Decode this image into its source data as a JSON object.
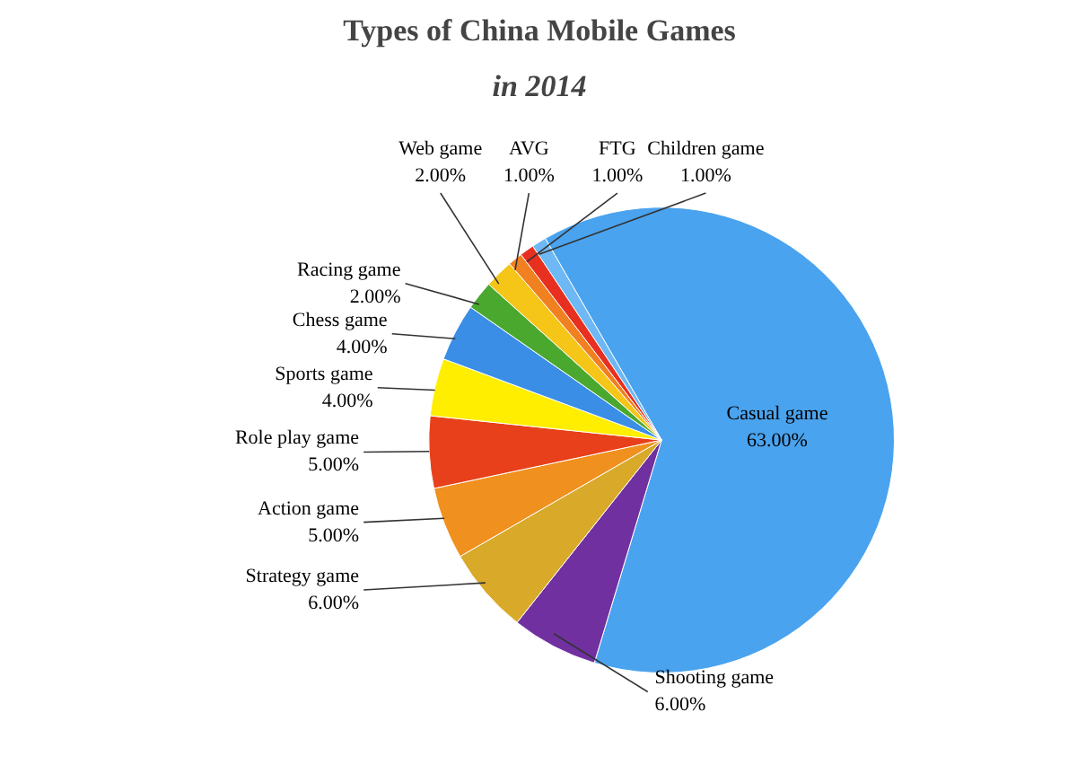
{
  "chart_data": {
    "type": "pie",
    "title": "Types of China Mobile Games",
    "subtitle": "in 2014",
    "categories": [
      "Casual game",
      "Shooting game",
      "Strategy game",
      "Action game",
      "Role play game",
      "Sports game",
      "Chess game",
      "Racing game",
      "Web game",
      "AVG",
      "FTG",
      "Children game"
    ],
    "values": [
      63,
      6,
      6,
      5,
      5,
      4,
      4,
      2,
      2,
      1,
      1,
      1
    ],
    "value_labels": [
      "63.00%",
      "6.00%",
      "6.00%",
      "5.00%",
      "5.00%",
      "4.00%",
      "4.00%",
      "2.00%",
      "2.00%",
      "1.00%",
      "1.00%",
      "1.00%"
    ],
    "colors": [
      "#4aa3ee",
      "#7030a0",
      "#d9a92a",
      "#f0901e",
      "#e8401a",
      "#ffee00",
      "#3a8ee6",
      "#4aa82e",
      "#f5c518",
      "#f08020",
      "#e83020",
      "#6db8f5"
    ]
  }
}
